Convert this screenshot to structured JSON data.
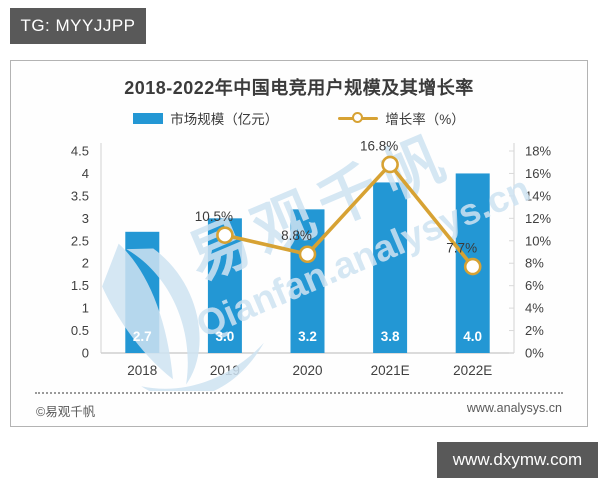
{
  "top_badge": {
    "label": "TG: MYYJJPP"
  },
  "bottom_badge": {
    "label": "www.dxymw.com"
  },
  "chart_card": {
    "title": "2018-2022年中国电竞用户规模及其增长率",
    "legend": [
      {
        "label": "市场规模（亿元）",
        "type": "bar",
        "color": "#2397d4"
      },
      {
        "label": "增长率（%）",
        "type": "line",
        "color": "#d7a233"
      }
    ],
    "watermark": {
      "text_cn": "易观千帆",
      "text_en": "Qianfan.analysys.cn",
      "icon": "sail-logo",
      "color": "#cfe3f2"
    },
    "footer": {
      "left": "©易观千帆",
      "right": "www.analysys.cn"
    }
  },
  "chart_data": {
    "type": "bar+line",
    "title": "2018-2022年中国电竞用户规模及其增长率",
    "categories": [
      "2018",
      "2019",
      "2020",
      "2021E",
      "2022E"
    ],
    "series": [
      {
        "name": "市场规模（亿元）",
        "type": "bar",
        "axis": "left",
        "color": "#2397d4",
        "values": [
          2.7,
          3.0,
          3.2,
          3.8,
          4.0
        ],
        "labels": [
          "2.7",
          "3.0",
          "3.2",
          "3.8",
          "4.0"
        ]
      },
      {
        "name": "增长率（%）",
        "type": "line",
        "axis": "right",
        "color": "#d7a233",
        "marker": "open-circle",
        "values": [
          null,
          10.5,
          8.8,
          16.8,
          7.7
        ],
        "labels": [
          null,
          "10.5%",
          "8.8%",
          "16.8%",
          "7.7%"
        ]
      }
    ],
    "left_axis": {
      "min": 0,
      "max": 4.5,
      "step": 0.5,
      "ticks": [
        "4.5",
        "4",
        "3.5",
        "3",
        "2.5",
        "2",
        "1.5",
        "1",
        "0.5",
        "0"
      ]
    },
    "right_axis": {
      "min": 0,
      "max": 18,
      "step": 2,
      "ticks": [
        "18%",
        "16%",
        "14%",
        "12%",
        "10%",
        "8%",
        "6%",
        "4%",
        "2%",
        "0%"
      ]
    },
    "grid": false,
    "legend_position": "top"
  }
}
